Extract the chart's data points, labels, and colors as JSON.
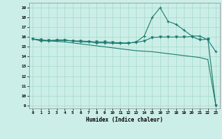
{
  "xlabel": "Humidex (Indice chaleur)",
  "xlim": [
    -0.5,
    23.5
  ],
  "ylim": [
    8.7,
    19.5
  ],
  "yticks": [
    9,
    10,
    11,
    12,
    13,
    14,
    15,
    16,
    17,
    18,
    19
  ],
  "xticks": [
    0,
    1,
    2,
    3,
    4,
    5,
    6,
    7,
    8,
    9,
    10,
    11,
    12,
    13,
    14,
    15,
    16,
    17,
    18,
    19,
    20,
    21,
    22,
    23
  ],
  "bg_color": "#cceee8",
  "grid_color": "#aaddcc",
  "line_color": "#1a7a6e",
  "line1_x": [
    0,
    1,
    2,
    3,
    4,
    5,
    6,
    7,
    8,
    9,
    10,
    11,
    12,
    13,
    14,
    15,
    16,
    17,
    18,
    19,
    20,
    21,
    22,
    23
  ],
  "line1_y": [
    15.8,
    15.6,
    15.6,
    15.7,
    15.7,
    15.6,
    15.5,
    15.5,
    15.4,
    15.4,
    15.35,
    15.35,
    15.35,
    15.5,
    16.1,
    18.0,
    19.0,
    17.6,
    17.3,
    16.7,
    16.1,
    16.1,
    15.7,
    14.5
  ],
  "line2_x": [
    0,
    1,
    2,
    3,
    4,
    5,
    6,
    7,
    8,
    9,
    10,
    11,
    12,
    13,
    14,
    15,
    16,
    17,
    18,
    19,
    20,
    21,
    22,
    23
  ],
  "line2_y": [
    15.8,
    15.7,
    15.65,
    15.65,
    15.65,
    15.6,
    15.6,
    15.55,
    15.5,
    15.5,
    15.45,
    15.4,
    15.4,
    15.45,
    15.6,
    15.95,
    16.0,
    16.0,
    16.0,
    16.0,
    16.05,
    15.7,
    15.8,
    9.0
  ],
  "line3_x": [
    0,
    1,
    2,
    3,
    4,
    5,
    6,
    7,
    8,
    9,
    10,
    11,
    12,
    13,
    14,
    15,
    16,
    17,
    18,
    19,
    20,
    21,
    22,
    23
  ],
  "line3_y": [
    15.8,
    15.7,
    15.6,
    15.55,
    15.5,
    15.4,
    15.3,
    15.2,
    15.1,
    15.0,
    14.9,
    14.8,
    14.7,
    14.6,
    14.55,
    14.5,
    14.4,
    14.3,
    14.2,
    14.1,
    14.0,
    13.9,
    13.7,
    9.0
  ]
}
